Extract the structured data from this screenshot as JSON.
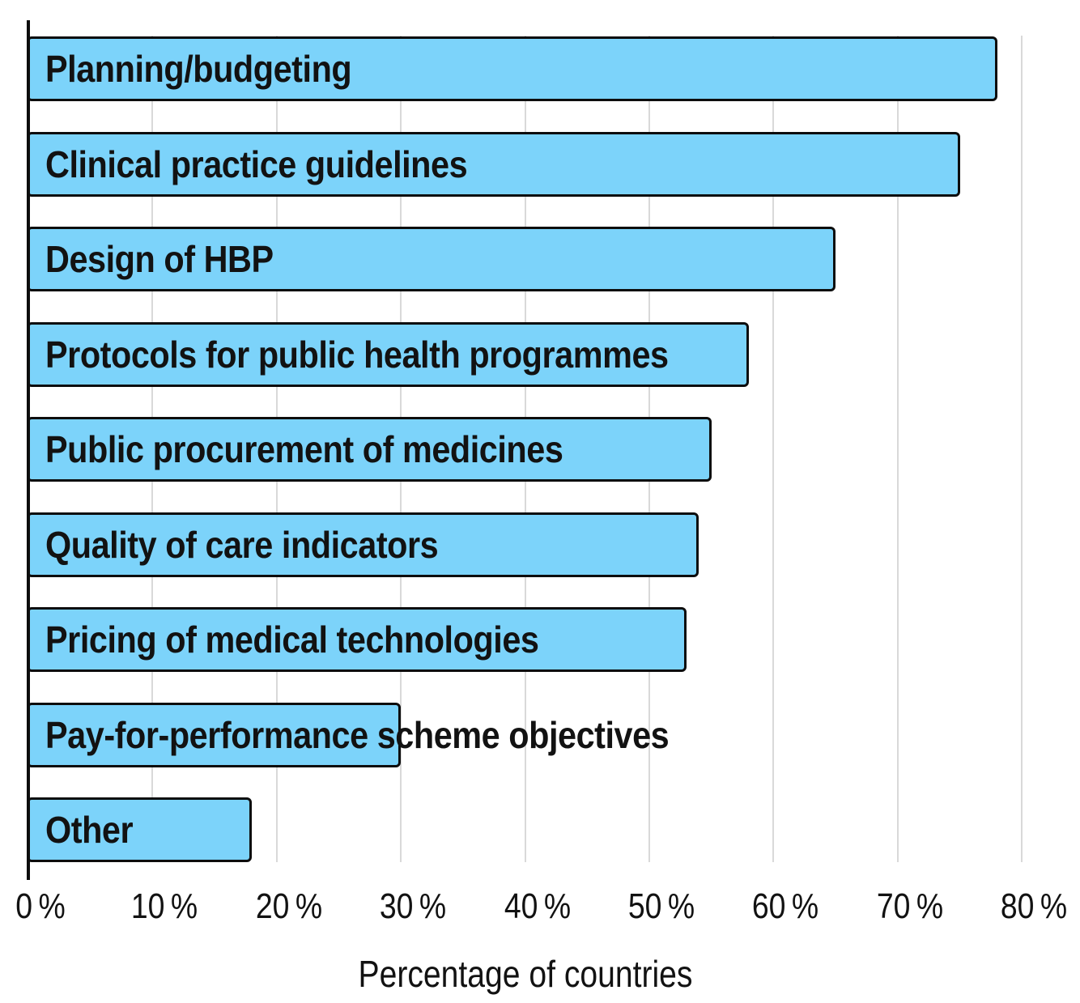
{
  "chart_data": {
    "type": "bar",
    "orientation": "horizontal",
    "xlabel": "Percentage of countries",
    "unit": "percent of countries",
    "xlim": [
      0,
      80
    ],
    "grid": "vertical-gridlines",
    "legend": "none",
    "categories": [
      "Planning/budgeting",
      "Clinical practice guidelines",
      "Design of HBP",
      "Protocols for public health programmes",
      "Public procurement of medicines",
      "Quality of care indicators",
      "Pricing of medical technologies",
      "Pay-for-performance scheme objectives",
      "Other"
    ],
    "values": [
      78,
      75,
      65,
      58,
      55,
      54,
      53,
      30,
      18
    ],
    "xticks": [
      0,
      10,
      20,
      30,
      40,
      50,
      60,
      70,
      80
    ],
    "xtick_labels": [
      "0 %",
      "10 %",
      "20 %",
      "30 %",
      "40 %",
      "50 %",
      "60 %",
      "70 %",
      "80 %"
    ],
    "colors": {
      "bar_fill": "#7CD3FA",
      "bar_border": "#0D0D0D",
      "gridline": "#D9D9D9",
      "axis": "#0D0D0D",
      "text": "#121212",
      "background": "#FFFFFF"
    }
  }
}
